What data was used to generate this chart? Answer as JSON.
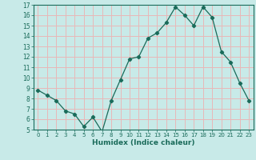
{
  "title": "",
  "xlabel": "Humidex (Indice chaleur)",
  "x_values": [
    0,
    1,
    2,
    3,
    4,
    5,
    6,
    7,
    8,
    9,
    10,
    11,
    12,
    13,
    14,
    15,
    16,
    17,
    18,
    19,
    20,
    21,
    22,
    23
  ],
  "y_values": [
    8.8,
    8.3,
    7.8,
    6.8,
    6.5,
    5.3,
    6.2,
    4.8,
    7.8,
    9.8,
    11.8,
    12.0,
    13.8,
    14.3,
    15.3,
    16.8,
    16.0,
    15.0,
    16.8,
    15.8,
    12.5,
    11.5,
    9.5,
    7.8
  ],
  "line_color": "#1a6b5a",
  "marker": "D",
  "marker_size": 2.2,
  "background_color": "#c8eae8",
  "grid_color": "#e8b8b8",
  "ylim": [
    5,
    17
  ],
  "xlim": [
    -0.5,
    23.5
  ],
  "yticks": [
    5,
    6,
    7,
    8,
    9,
    10,
    11,
    12,
    13,
    14,
    15,
    16,
    17
  ],
  "xticks": [
    0,
    1,
    2,
    3,
    4,
    5,
    6,
    7,
    8,
    9,
    10,
    11,
    12,
    13,
    14,
    15,
    16,
    17,
    18,
    19,
    20,
    21,
    22,
    23
  ],
  "tick_color": "#1a6b5a",
  "label_color": "#1a6b5a",
  "spine_color": "#1a6b5a",
  "xlabel_fontsize": 6.5,
  "xtick_fontsize": 5.0,
  "ytick_fontsize": 5.5
}
